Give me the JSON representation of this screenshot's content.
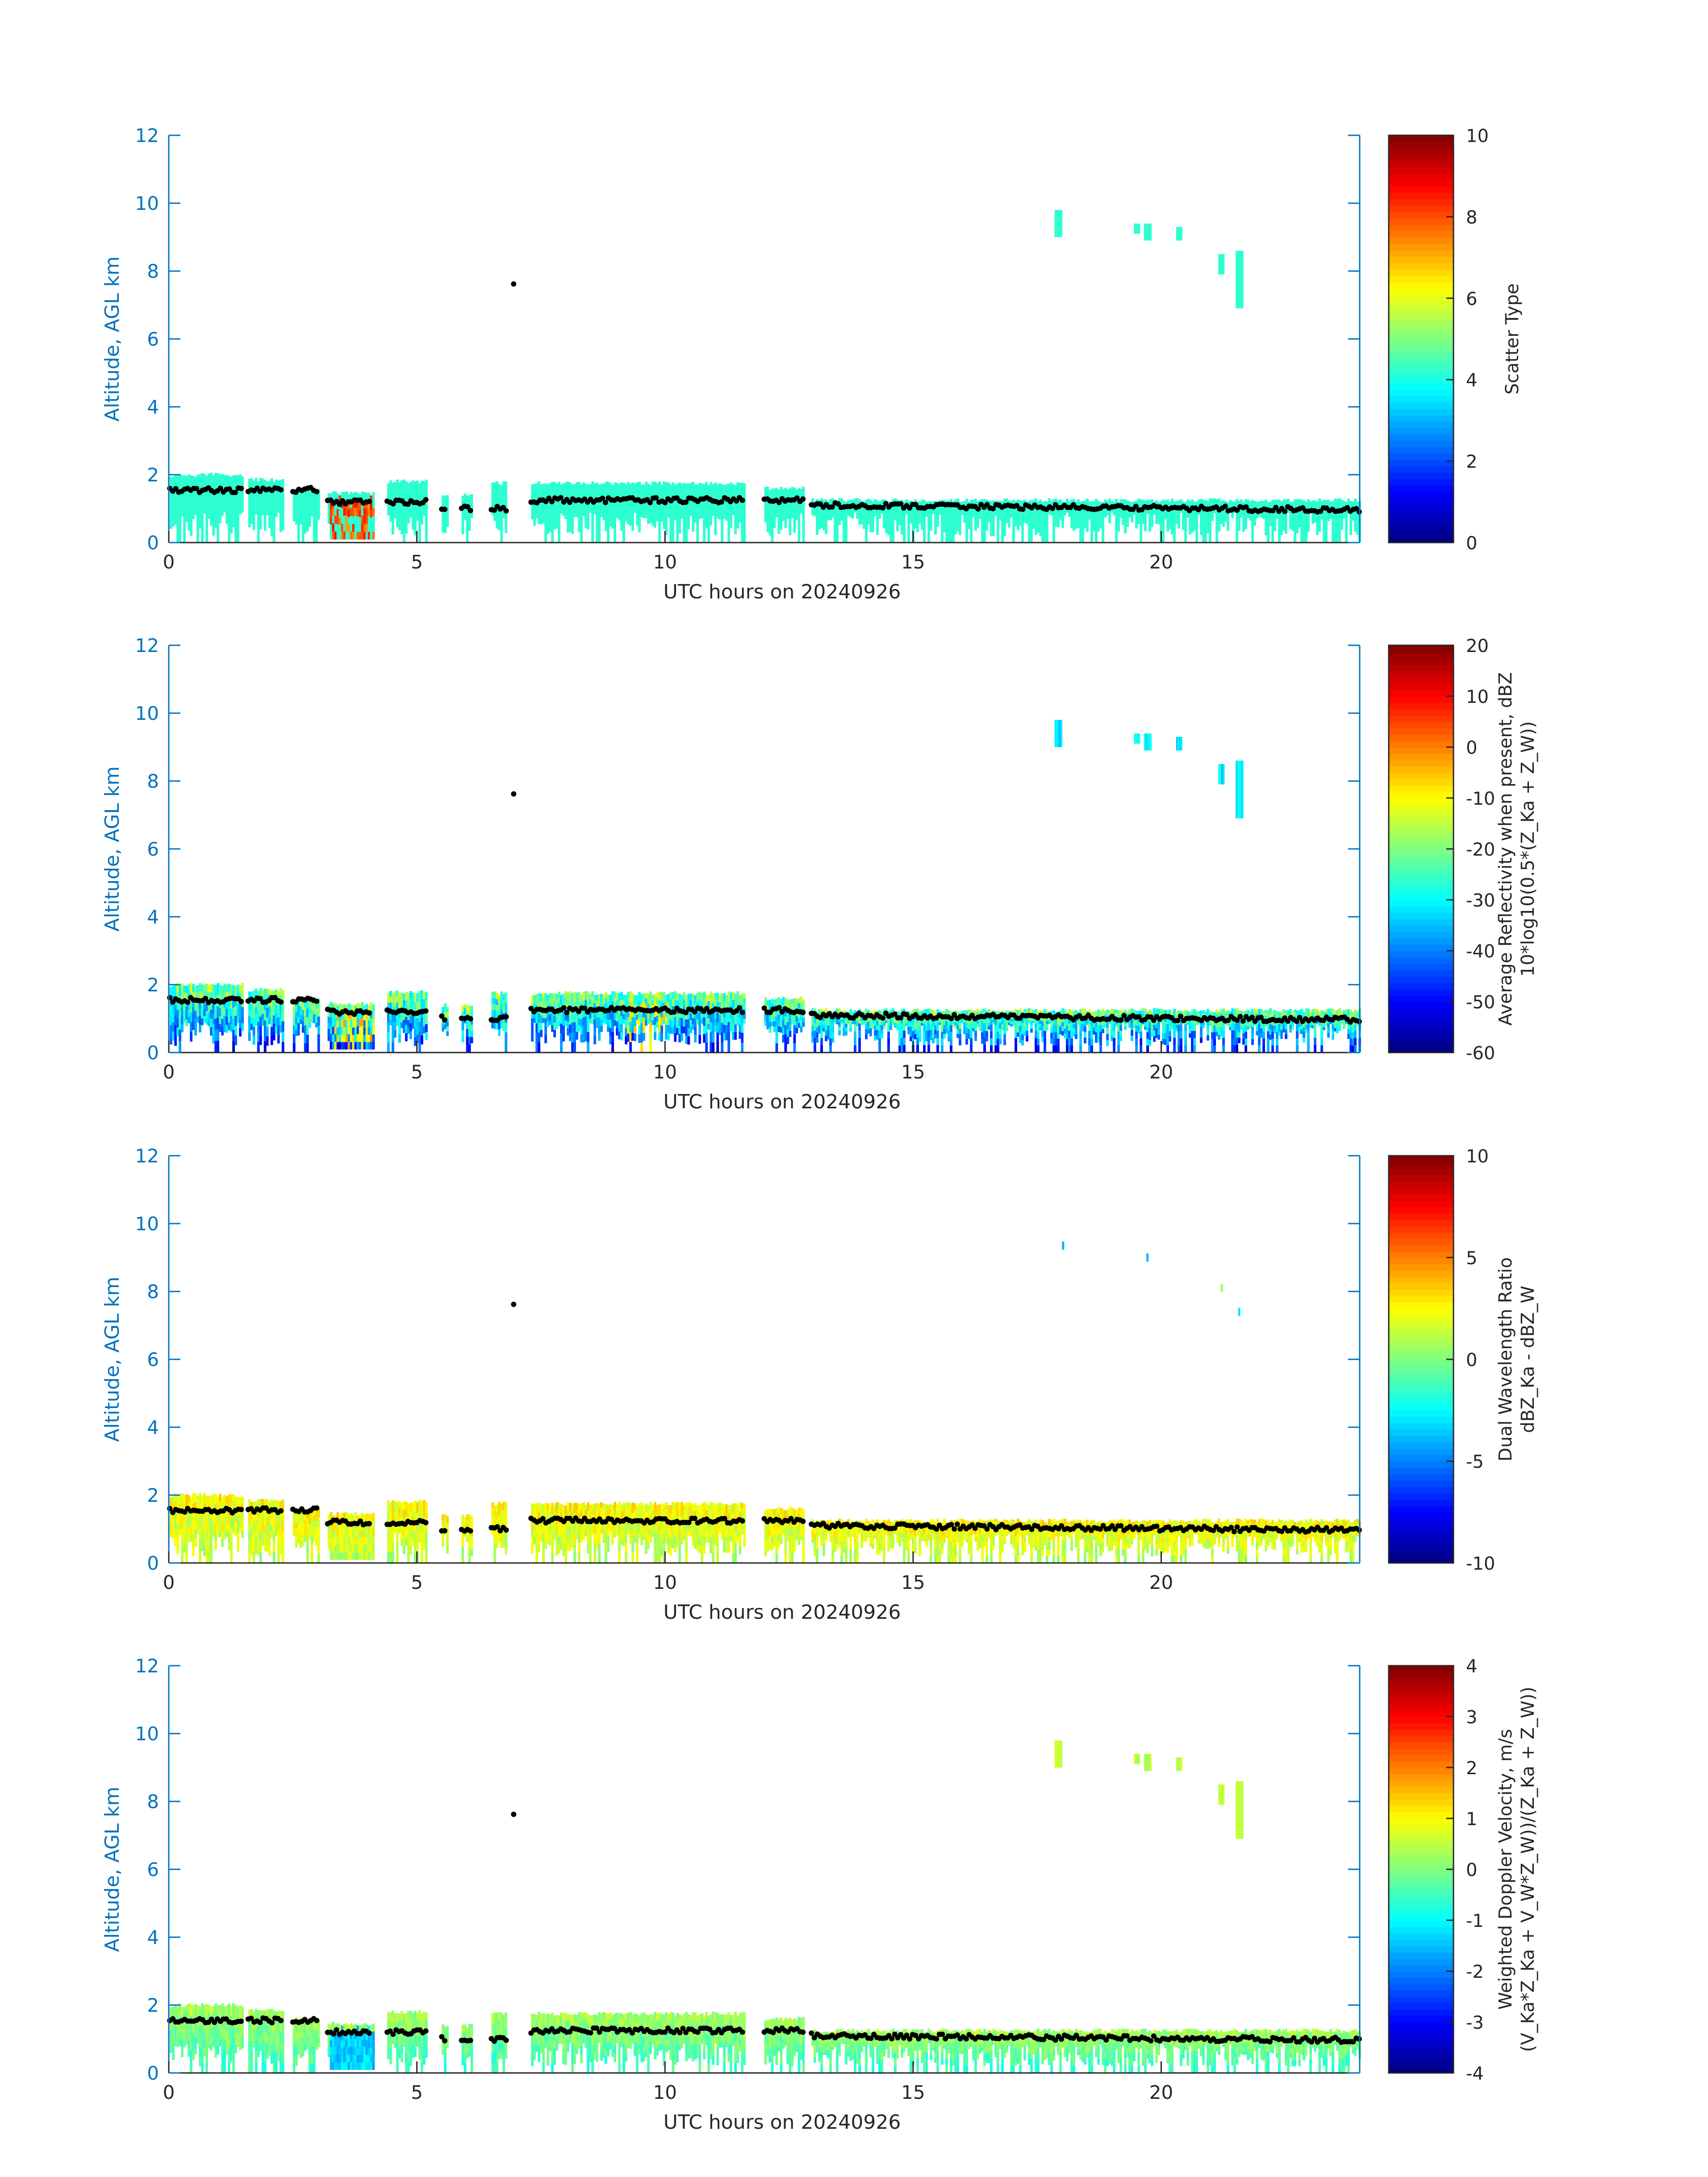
{
  "chart_data": [
    {
      "type": "heatmap",
      "xlabel": "UTC hours on 20240926",
      "ylabel": "Altitude, AGL km",
      "xlim": [
        0,
        24
      ],
      "ylim": [
        0,
        12
      ],
      "xticks": [
        0,
        5,
        10,
        15,
        20
      ],
      "yticks": [
        0,
        2,
        4,
        6,
        8,
        10,
        12
      ],
      "colorbar": {
        "label": [
          "Scatter Type"
        ],
        "range": [
          0,
          10
        ],
        "ticks": [
          0,
          2,
          4,
          6,
          8,
          10
        ],
        "colormap": "jet"
      },
      "field": "scatter-type",
      "overlay": "cloud-base-height-black-dots"
    },
    {
      "type": "heatmap",
      "xlabel": "UTC hours on 20240926",
      "ylabel": "Altitude, AGL km",
      "xlim": [
        0,
        24
      ],
      "ylim": [
        0,
        12
      ],
      "xticks": [
        0,
        5,
        10,
        15,
        20
      ],
      "yticks": [
        0,
        2,
        4,
        6,
        8,
        10,
        12
      ],
      "colorbar": {
        "label": [
          "Average Reflectivity when present, dBZ",
          "10*log10(0.5*(Z_Ka + Z_W))"
        ],
        "range": [
          -60,
          20
        ],
        "ticks": [
          -60,
          -50,
          -40,
          -30,
          -20,
          -10,
          0,
          10,
          20
        ],
        "colormap": "jet"
      },
      "field": "reflectivity",
      "overlay": "cloud-base-height-black-dots"
    },
    {
      "type": "heatmap",
      "xlabel": "UTC hours on 20240926",
      "ylabel": "Altitude, AGL km",
      "xlim": [
        0,
        24
      ],
      "ylim": [
        0,
        12
      ],
      "xticks": [
        0,
        5,
        10,
        15,
        20
      ],
      "yticks": [
        0,
        2,
        4,
        6,
        8,
        10,
        12
      ],
      "colorbar": {
        "label": [
          "Dual Wavelength Ratio",
          "dBZ_Ka - dBZ_W"
        ],
        "range": [
          -10,
          10
        ],
        "ticks": [
          -10,
          -5,
          0,
          5,
          10
        ],
        "colormap": "jet"
      },
      "field": "dwr",
      "overlay": "cloud-base-height-black-dots"
    },
    {
      "type": "heatmap",
      "xlabel": "UTC hours on 20240926",
      "ylabel": "Altitude, AGL km",
      "xlim": [
        0,
        24
      ],
      "ylim": [
        0,
        12
      ],
      "xticks": [
        0,
        5,
        10,
        15,
        20
      ],
      "yticks": [
        0,
        2,
        4,
        6,
        8,
        10,
        12
      ],
      "colorbar": {
        "label": [
          "Weighted Doppler Velocity, m/s",
          "(V_Ka*Z_Ka + V_W*Z_W))/(Z_Ka + Z_W))"
        ],
        "range": [
          -4,
          4
        ],
        "ticks": [
          -4,
          -3,
          -2,
          -1,
          0,
          1,
          2,
          3,
          4
        ],
        "colormap": "jet"
      },
      "field": "doppler",
      "overlay": "cloud-base-height-black-dots"
    }
  ]
}
